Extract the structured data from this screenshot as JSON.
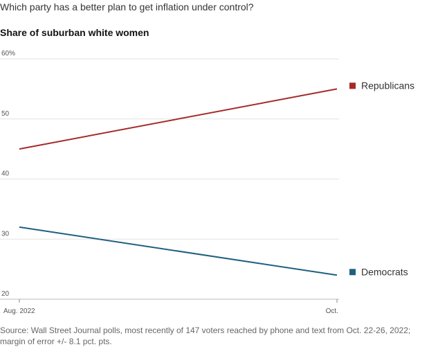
{
  "title": "Which party has a better plan to get inflation under control?",
  "subtitle": "Share of suburban white women",
  "source": "Source: Wall Street Journal polls, most recently of 147 voters reached by phone and text from Oct. 22-26, 2022; margin of error +/- 8.1 pct. pts.",
  "colors": {
    "republicans": "#a52a2a",
    "democrats": "#1f5f80"
  },
  "chart_data": {
    "type": "line",
    "x": [
      "Aug. 2022",
      "Oct."
    ],
    "ylim": [
      20,
      60
    ],
    "y_ticks": [
      20,
      30,
      40,
      50,
      60
    ],
    "y_tick_labels": [
      "20",
      "30",
      "40",
      "50",
      "60%"
    ],
    "grid": true,
    "legend": "right, at line ends",
    "series": [
      {
        "name": "Republicans",
        "values": [
          45,
          55
        ]
      },
      {
        "name": "Democrats",
        "values": [
          32,
          24
        ]
      }
    ]
  }
}
